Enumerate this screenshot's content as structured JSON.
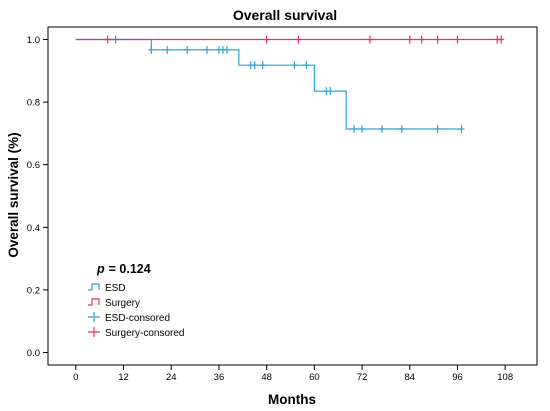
{
  "chart_data": {
    "type": "line",
    "title": "Overall survival",
    "xlabel": "Months",
    "ylabel": "Overall survival (%)",
    "xlim": [
      -7,
      116
    ],
    "ylim": [
      -0.04,
      1.04
    ],
    "xticks": [
      0,
      12,
      24,
      36,
      48,
      60,
      72,
      84,
      96,
      108
    ],
    "yticks": [
      0.0,
      0.2,
      0.4,
      0.6,
      0.8,
      1.0
    ],
    "ytick_labels": [
      "0.0",
      "0.2",
      "0.4",
      "0.6",
      "0.8",
      "1.0"
    ],
    "grid": false,
    "legend_position": "bottom-left",
    "annotation": {
      "p_label": "p",
      "p_value": "= 0.124"
    },
    "legend": [
      {
        "label": "ESD",
        "kind": "step",
        "color": "#2fa3d9"
      },
      {
        "label": "Surgery",
        "kind": "step",
        "color": "#e8325f"
      },
      {
        "label": "ESD-consored",
        "kind": "censor",
        "color": "#2fa3d9"
      },
      {
        "label": "Surgery-consored",
        "kind": "censor",
        "color": "#e8325f"
      }
    ],
    "series": [
      {
        "name": "ESD",
        "color": "#2fa3d9",
        "steps": [
          [
            0,
            1.0
          ],
          [
            19,
            0.967
          ],
          [
            41,
            0.918
          ],
          [
            60,
            0.835
          ],
          [
            68,
            0.714
          ],
          [
            97,
            0.714
          ]
        ],
        "censored": [
          [
            10,
            1.0
          ],
          [
            19,
            0.967
          ],
          [
            23,
            0.967
          ],
          [
            28,
            0.967
          ],
          [
            33,
            0.967
          ],
          [
            36,
            0.967
          ],
          [
            37,
            0.967
          ],
          [
            38,
            0.967
          ],
          [
            44,
            0.918
          ],
          [
            45,
            0.918
          ],
          [
            47,
            0.918
          ],
          [
            55,
            0.918
          ],
          [
            58,
            0.918
          ],
          [
            63,
            0.835
          ],
          [
            64,
            0.835
          ],
          [
            70,
            0.714
          ],
          [
            72,
            0.714
          ],
          [
            77,
            0.714
          ],
          [
            82,
            0.714
          ],
          [
            91,
            0.714
          ],
          [
            97,
            0.714
          ]
        ]
      },
      {
        "name": "Surgery",
        "color": "#e8325f",
        "steps": [
          [
            0,
            1.0
          ],
          [
            107,
            1.0
          ]
        ],
        "censored": [
          [
            8,
            1.0
          ],
          [
            48,
            1.0
          ],
          [
            56,
            1.0
          ],
          [
            74,
            1.0
          ],
          [
            84,
            1.0
          ],
          [
            87,
            1.0
          ],
          [
            91,
            1.0
          ],
          [
            96,
            1.0
          ],
          [
            106,
            1.0
          ],
          [
            107,
            1.0
          ]
        ]
      }
    ]
  }
}
